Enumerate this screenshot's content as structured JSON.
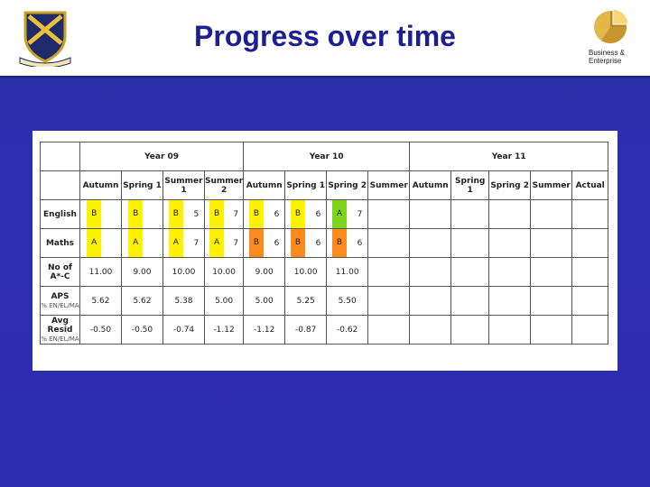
{
  "title": "Progress over time",
  "logo_right": {
    "line1": "Business &",
    "line2": "Enterprise"
  },
  "colors": {
    "background": "#2b2eac",
    "title": "#1b1f8f",
    "yellow": "#fff200",
    "green": "#7ed61c",
    "orange": "#ff8a1e"
  },
  "table": {
    "years": [
      "Year 09",
      "Year 10",
      "Year 11"
    ],
    "terms": {
      "y9": [
        "Autumn",
        "Spring 1",
        "Summer 1",
        "Summer 2"
      ],
      "y10": [
        "Autumn",
        "Spring 1",
        "Spring 2",
        "Summer"
      ],
      "y11": [
        "Autumn",
        "Spring 1",
        "Spring 2",
        "Summer",
        "Actual"
      ]
    },
    "english": {
      "label": "English",
      "cells": [
        {
          "grade": "B",
          "num": ""
        },
        {
          "grade": "B",
          "num": ""
        },
        {
          "grade": "B",
          "num": "5"
        },
        {
          "grade": "B",
          "num": "7"
        },
        {
          "grade": "B",
          "num": "6"
        },
        {
          "grade": "B",
          "num": "6"
        },
        {
          "grade": "A",
          "num": "7"
        }
      ]
    },
    "maths": {
      "label": "Maths",
      "cells": [
        {
          "grade": "A",
          "num": ""
        },
        {
          "grade": "A",
          "num": ""
        },
        {
          "grade": "A",
          "num": "7"
        },
        {
          "grade": "A",
          "num": "7"
        },
        {
          "grade": "B",
          "num": "6"
        },
        {
          "grade": "B",
          "num": "6"
        },
        {
          "grade": "B",
          "num": "6"
        }
      ]
    },
    "ac": {
      "label1": "No of",
      "label2": "A*-C",
      "values": [
        "11.00",
        "9.00",
        "10.00",
        "10.00",
        "9.00",
        "10.00",
        "11.00"
      ]
    },
    "aps": {
      "label": "APS",
      "sub": "% EN/EL/MA",
      "values": [
        "5.62",
        "5.62",
        "5.38",
        "5.00",
        "5.00",
        "5.25",
        "5.50"
      ]
    },
    "resid": {
      "label": "Avg Resid",
      "sub": "% EN/EL/MA",
      "values": [
        "-0.50",
        "-0.50",
        "-0.74",
        "-1.12",
        "-1.12",
        "-0.87",
        "-0.62"
      ]
    }
  }
}
